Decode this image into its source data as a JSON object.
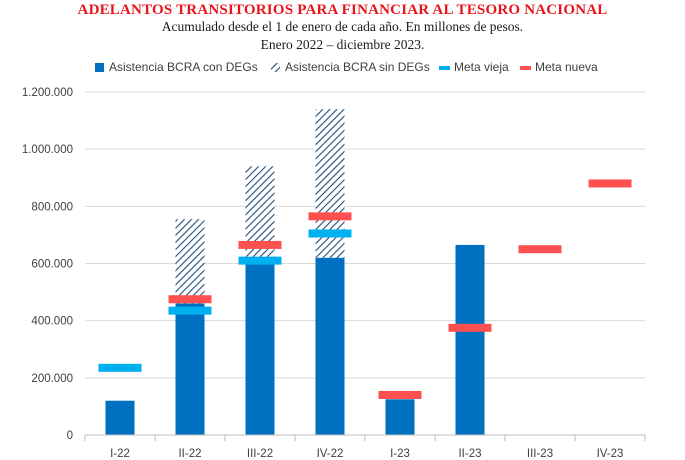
{
  "chart_data": {
    "type": "bar",
    "title": "ADELANTOS TRANSITORIOS PARA FINANCIAR AL TESORO NACIONAL",
    "subtitle_1": "Acumulado desde el 1 de enero de cada año. En millones de pesos.",
    "subtitle_2": "Enero 2022 – diciembre 2023.",
    "categories": [
      "I-22",
      "II-22",
      "III-22",
      "IV-22",
      "I-23",
      "II-23",
      "III-23",
      "IV-23"
    ],
    "ylim": [
      0,
      1200000
    ],
    "yticks": [
      0,
      200000,
      400000,
      600000,
      800000,
      1000000,
      1200000
    ],
    "ytick_labels": [
      "0",
      "200.000",
      "400.000",
      "600.000",
      "800.000",
      "1.000.000",
      "1.200.000"
    ],
    "grid": true,
    "legend_position": "top",
    "series": [
      {
        "name": "Asistencia BCRA con DEGs",
        "kind": "bar",
        "color": "#0070c0",
        "values": [
          120000,
          460000,
          620000,
          620000,
          125000,
          665000,
          null,
          null
        ]
      },
      {
        "name": "Asistencia BCRA sin DEGs",
        "kind": "hatched-bar",
        "color": "#1f4e79",
        "values": [
          null,
          755000,
          940000,
          1140000,
          null,
          null,
          null,
          null
        ]
      },
      {
        "name": "Meta vieja",
        "kind": "marker",
        "color": "#00b0f0",
        "values": [
          235000,
          435000,
          610000,
          705000,
          null,
          null,
          null,
          null
        ]
      },
      {
        "name": "Meta nueva",
        "kind": "marker",
        "color": "#ff5050",
        "values": [
          null,
          475000,
          665000,
          765000,
          140000,
          375000,
          650000,
          880000
        ]
      }
    ]
  }
}
